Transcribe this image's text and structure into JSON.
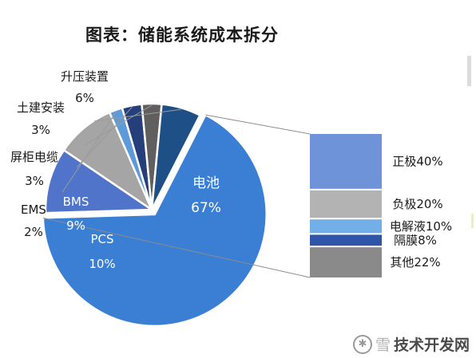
{
  "title": "图表：储能系统成本拆分",
  "chart_data": [
    {
      "type": "pie",
      "slices": [
        {
          "name": "电池",
          "value": 67,
          "label": "67%",
          "color": "#3b7fd4"
        },
        {
          "name": "PCS",
          "value": 10,
          "label": "10%",
          "color": "#4f74c9"
        },
        {
          "name": "BMS",
          "value": 9,
          "label": "9%",
          "color": "#a5a5a5"
        },
        {
          "name": "EMS",
          "value": 2,
          "label": "2%",
          "color": "#5d9ad9"
        },
        {
          "name": "屏柜电缆",
          "value": 3,
          "label": "3%",
          "color": "#253f7a"
        },
        {
          "name": "土建安装",
          "value": 3,
          "label": "3%",
          "color": "#5f5f5f"
        },
        {
          "name": "升压装置",
          "value": 6,
          "label": "6%",
          "color": "#1f4f87"
        }
      ]
    },
    {
      "type": "bar",
      "stacked": true,
      "categories": [
        "正极",
        "负极",
        "电解液",
        "隔膜",
        "其他"
      ],
      "values": [
        40,
        20,
        10,
        8,
        22
      ],
      "labels": [
        "正极40%",
        "负极20%",
        "电解液10%",
        "隔膜8%",
        "其他22%"
      ],
      "colors": [
        "#6f93d8",
        "#b3b3b3",
        "#72aee8",
        "#2f55a8",
        "#8a8a8a"
      ]
    }
  ],
  "watermark": {
    "icon": "snowflake-icon",
    "prefix": "雪",
    "text": "技术开发网"
  }
}
